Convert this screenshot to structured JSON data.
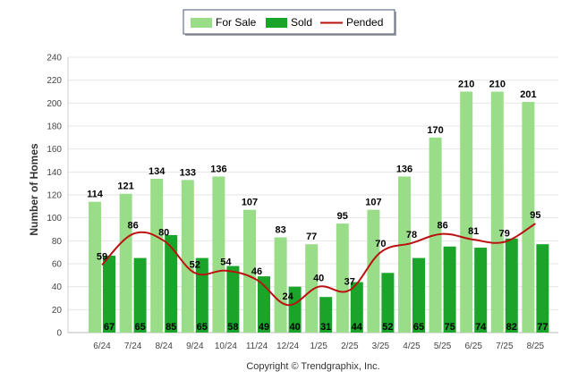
{
  "chart_data": {
    "type": "bar",
    "categories": [
      "6/24",
      "7/24",
      "8/24",
      "9/24",
      "10/24",
      "11/24",
      "12/24",
      "1/25",
      "2/25",
      "3/25",
      "4/25",
      "5/25",
      "6/25",
      "7/25",
      "8/25"
    ],
    "series": [
      {
        "name": "For Sale",
        "kind": "bar",
        "color": "#99dd88",
        "values": [
          114,
          121,
          134,
          133,
          136,
          107,
          83,
          77,
          95,
          107,
          136,
          170,
          210,
          210,
          201
        ]
      },
      {
        "name": "Sold",
        "kind": "bar",
        "color": "#1aa52a",
        "values": [
          67,
          65,
          85,
          65,
          58,
          49,
          40,
          31,
          44,
          52,
          65,
          75,
          74,
          82,
          77
        ]
      },
      {
        "name": "Pended",
        "kind": "line",
        "color": "#bb1111",
        "values": [
          59,
          86,
          80,
          52,
          54,
          46,
          24,
          40,
          37,
          70,
          78,
          86,
          81,
          79,
          95
        ]
      }
    ],
    "ylabel": "Number of Homes",
    "xlabel": "",
    "ylim": [
      0,
      240
    ],
    "yticks": [
      0,
      20,
      40,
      60,
      80,
      100,
      120,
      140,
      160,
      180,
      200,
      220,
      240
    ],
    "grid": true,
    "legend_position": "top-center",
    "footer": "Copyright © Trendgraphix, Inc."
  }
}
